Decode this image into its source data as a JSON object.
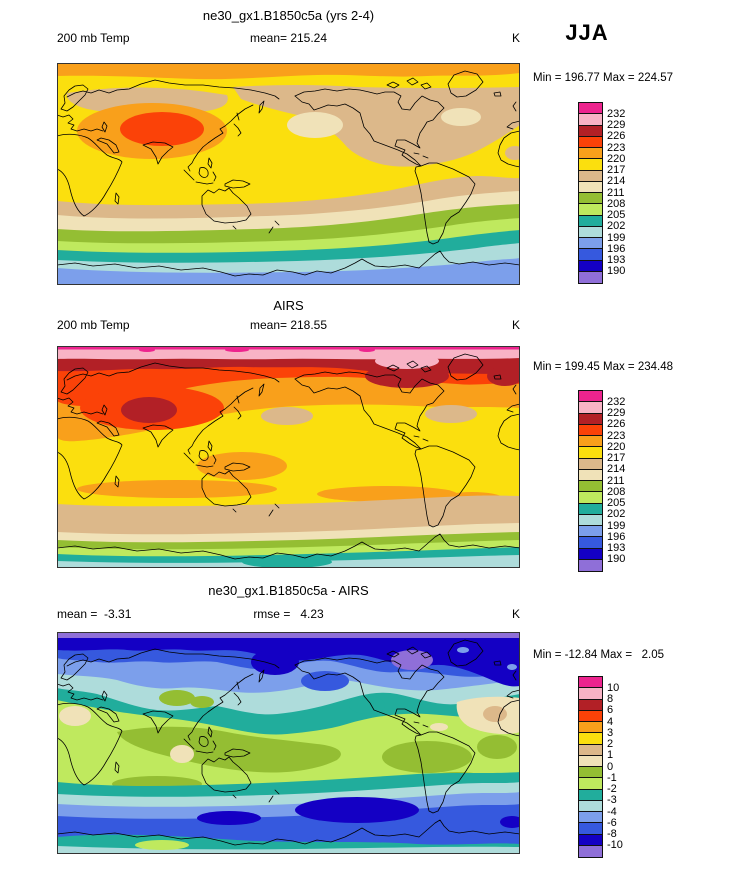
{
  "season": "JJA",
  "palette": {
    "comment": "colorbar colors top(warm/positive) to bottom(cold/negative)",
    "colors": [
      "#ED248E",
      "#F8B3C5",
      "#B22026",
      "#FB4208",
      "#F9A01B",
      "#FBDF0E",
      "#DCB88A",
      "#F0E2B8",
      "#94BE33",
      "#BFE95E",
      "#21AD9C",
      "#AEDCDB",
      "#7C9FEB",
      "#3659DE",
      "#1400C4",
      "#8F6FD8"
    ]
  },
  "panels": [
    {
      "title": "ne30_gx1.B1850c5a (yrs 2-4)",
      "left_label": "200 mb Temp",
      "center_label": "mean= 215.24",
      "units": "K",
      "minmax": "Min = 196.77 Max = 224.57",
      "levels": [
        "232",
        "229",
        "226",
        "223",
        "220",
        "217",
        "214",
        "211",
        "208",
        "205",
        "202",
        "199",
        "196",
        "193",
        "190"
      ]
    },
    {
      "title": "AIRS",
      "left_label": "200 mb Temp",
      "center_label": "mean= 218.55",
      "units": "K",
      "minmax": "Min = 199.45 Max = 234.48",
      "levels": [
        "232",
        "229",
        "226",
        "223",
        "220",
        "217",
        "214",
        "211",
        "208",
        "205",
        "202",
        "199",
        "196",
        "193",
        "190"
      ]
    },
    {
      "title": "ne30_gx1.B1850c5a - AIRS",
      "left_label": "mean =  -3.31",
      "center_label": "rmse =   4.23",
      "units": "K",
      "minmax": "Min = -12.84 Max =   2.05",
      "levels": [
        "10",
        "8",
        "6",
        "4",
        "3",
        "2",
        "1",
        "0",
        "-1",
        "-2",
        "-3",
        "-4",
        "-6",
        "-8",
        "-10"
      ]
    }
  ],
  "chart_data": [
    {
      "type": "heatmap",
      "subtype": "filled-contour-world-map",
      "title": "ne30_gx1.B1850c5a (yrs 2-4)",
      "variable": "200 mb Temp",
      "units": "K",
      "season": "JJA",
      "mean": 215.24,
      "min": 196.77,
      "max": 224.57,
      "contour_levels": [
        190,
        193,
        196,
        199,
        202,
        205,
        208,
        211,
        214,
        217,
        220,
        223,
        226,
        229,
        232
      ],
      "palette_high_to_low": [
        "#ED248E",
        "#F8B3C5",
        "#B22026",
        "#FB4208",
        "#F9A01B",
        "#FBDF0E",
        "#DCB88A",
        "#F0E2B8",
        "#94BE33",
        "#BFE95E",
        "#21AD9C",
        "#AEDCDB",
        "#7C9FEB",
        "#3659DE",
        "#1400C4",
        "#8F6FD8"
      ],
      "layout": {
        "projection": "cylindrical equidistant, Pacific-centered",
        "legend_position": "right",
        "grid": false
      }
    },
    {
      "type": "heatmap",
      "subtype": "filled-contour-world-map",
      "title": "AIRS",
      "variable": "200 mb Temp",
      "units": "K",
      "season": "JJA",
      "mean": 218.55,
      "min": 199.45,
      "max": 234.48,
      "contour_levels": [
        190,
        193,
        196,
        199,
        202,
        205,
        208,
        211,
        214,
        217,
        220,
        223,
        226,
        229,
        232
      ],
      "palette_high_to_low": [
        "#ED248E",
        "#F8B3C5",
        "#B22026",
        "#FB4208",
        "#F9A01B",
        "#FBDF0E",
        "#DCB88A",
        "#F0E2B8",
        "#94BE33",
        "#BFE95E",
        "#21AD9C",
        "#AEDCDB",
        "#7C9FEB",
        "#3659DE",
        "#1400C4",
        "#8F6FD8"
      ],
      "layout": {
        "projection": "cylindrical equidistant, Pacific-centered",
        "legend_position": "right",
        "grid": false
      }
    },
    {
      "type": "heatmap",
      "subtype": "filled-contour-world-map-difference",
      "title": "ne30_gx1.B1850c5a - AIRS",
      "variable": "200 mb Temp difference",
      "units": "K",
      "season": "JJA",
      "mean": -3.31,
      "rmse": 4.23,
      "min": -12.84,
      "max": 2.05,
      "contour_levels": [
        -10,
        -8,
        -6,
        -4,
        -3,
        -2,
        -1,
        0,
        1,
        2,
        3,
        4,
        6,
        8,
        10
      ],
      "palette_high_to_low": [
        "#ED248E",
        "#F8B3C5",
        "#B22026",
        "#FB4208",
        "#F9A01B",
        "#FBDF0E",
        "#DCB88A",
        "#F0E2B8",
        "#94BE33",
        "#BFE95E",
        "#21AD9C",
        "#AEDCDB",
        "#7C9FEB",
        "#3659DE",
        "#1400C4",
        "#8F6FD8"
      ],
      "layout": {
        "projection": "cylindrical equidistant, Pacific-centered",
        "legend_position": "right",
        "grid": false
      }
    }
  ]
}
